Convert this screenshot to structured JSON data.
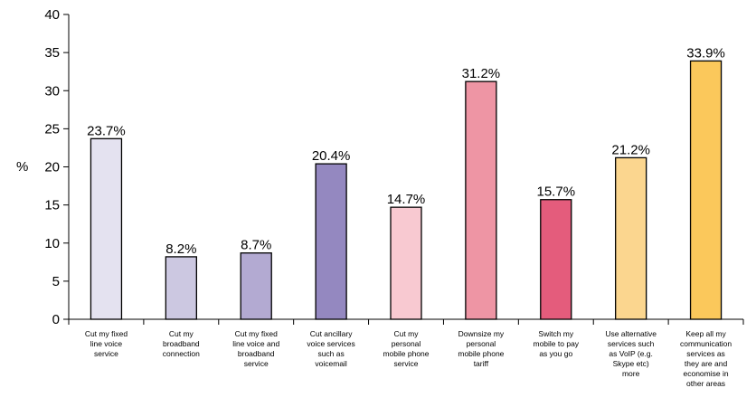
{
  "chart_data": {
    "type": "bar",
    "title": "",
    "xlabel": "",
    "ylabel": "%",
    "ylim": [
      0,
      40
    ],
    "yticks": [
      0,
      5,
      10,
      15,
      20,
      25,
      30,
      35,
      40
    ],
    "grid": false,
    "legend": "none",
    "categories": [
      [
        "Cut my fixed",
        "line voice",
        "service"
      ],
      [
        "Cut my",
        "broadband",
        "connection"
      ],
      [
        "Cut my fixed",
        "line voice and",
        "broadband",
        "service"
      ],
      [
        "Cut ancillary",
        "voice services",
        "such as",
        "voicemail"
      ],
      [
        "Cut my",
        "personal",
        "mobile phone",
        "service"
      ],
      [
        "Downsize my",
        "personal",
        "mobile phone",
        "tariff"
      ],
      [
        "Switch my",
        "mobile to pay",
        "as you go"
      ],
      [
        "Use alternative",
        "services such",
        "as VoIP (e.g.",
        "Skype etc)",
        "more"
      ],
      [
        "Keep all my",
        "communication",
        "services as",
        "they are and",
        "economise in",
        "other areas"
      ]
    ],
    "values": [
      23.7,
      8.2,
      8.7,
      20.4,
      14.7,
      31.2,
      15.7,
      21.2,
      33.9
    ],
    "data_labels": [
      "23.7%",
      "8.2%",
      "8.7%",
      "20.4%",
      "14.7%",
      "31.2%",
      "15.7%",
      "21.2%",
      "33.9%"
    ],
    "colors": [
      "#e4e2f0",
      "#ccc8e1",
      "#b3aad2",
      "#9488c0",
      "#f8c9d1",
      "#ee95a4",
      "#e45c7c",
      "#fbd68f",
      "#fbc85b"
    ]
  }
}
